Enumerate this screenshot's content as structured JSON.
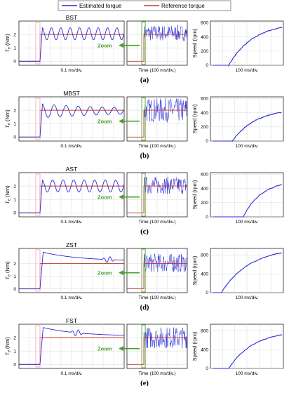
{
  "legend": {
    "items": [
      {
        "name": "Estimated torque",
        "color": "#2b2bd6"
      },
      {
        "name": "Reference torque",
        "color": "#c0392b"
      }
    ]
  },
  "common": {
    "ylabel_torque_main": "T",
    "ylabel_torque_sub": "e",
    "ylabel_torque_unit": " (Nm)",
    "xlabel_left": "0.1 ms/div.",
    "xlabel_mid": "Time (100 ms/div.)",
    "xlabel_right": "100 ms/div.",
    "ylabel_speed": "Speed (rpm)",
    "zoom_label": "Zoom",
    "torque_ticks": [
      0,
      1,
      2
    ],
    "reference_torque": 2,
    "step_time_ms": 0.2,
    "zoom_window_ms": 1.0,
    "mid_window_ms": 1000,
    "zoom_arrow_icon": "left-arrow-icon"
  },
  "panels": [
    {
      "label": "(a)",
      "title": "BST",
      "ylim": [
        -0.3,
        3
      ],
      "torque_behavior": "sustained oscillation about 2.1 Nm",
      "oscillation": {
        "mean": 2.05,
        "amplitude": 0.45,
        "cycles": 9,
        "decay": 0
      },
      "noise_band": [
        1.5,
        2.7
      ],
      "speed_ticks": [
        0,
        200,
        400,
        600
      ],
      "speed_ylim": [
        0,
        600
      ],
      "speed_start_ms": 250,
      "speed_final": 540
    },
    {
      "label": "(b)",
      "title": "MBST",
      "ylim": [
        -0.3,
        3
      ],
      "torque_behavior": "decaying oscillation about 2.0 Nm",
      "oscillation": {
        "mean": 1.95,
        "amplitude": 0.4,
        "cycles": 7,
        "decay": 1.2
      },
      "noise_band": [
        1.1,
        2.9
      ],
      "speed_ticks": [
        0,
        200,
        400,
        600
      ],
      "speed_ylim": [
        0,
        600
      ],
      "speed_start_ms": 300,
      "speed_final": 410
    },
    {
      "label": "(c)",
      "title": "AST",
      "ylim": [
        -0.3,
        3
      ],
      "torque_behavior": "sustained oscillation about 2.0 Nm",
      "oscillation": {
        "mean": 2.0,
        "amplitude": 0.45,
        "cycles": 8,
        "decay": 0
      },
      "noise_band": [
        1.4,
        2.7
      ],
      "speed_ticks": [
        0,
        200,
        400,
        600
      ],
      "speed_ylim": [
        0,
        600
      ],
      "speed_start_ms": 450,
      "speed_final": 460
    },
    {
      "label": "(d)",
      "title": "ZST",
      "ylim": [
        -0.3,
        3.2
      ],
      "torque_behavior": "overshoot to 2.9 Nm then slow decay",
      "overshoot": {
        "peak": 2.9,
        "final": 2.2,
        "ripple_at": 0.85
      },
      "noise_band": [
        1.3,
        2.8
      ],
      "speed_ticks": [
        0,
        400,
        800
      ],
      "speed_ylim": [
        0,
        900
      ],
      "speed_start_ms": 150,
      "speed_final": 850
    },
    {
      "label": "(e)",
      "title": "FST",
      "ylim": [
        -0.3,
        3
      ],
      "torque_behavior": "overshoot to 2.7 Nm then settles with secondary bump",
      "overshoot": {
        "peak": 2.75,
        "final": 2.1,
        "ripple_at": 0.55
      },
      "noise_band": [
        1.2,
        2.8
      ],
      "speed_ticks": [
        0,
        400,
        800
      ],
      "speed_ylim": [
        0,
        900
      ],
      "speed_start_ms": 250,
      "speed_final": 720
    }
  ]
}
